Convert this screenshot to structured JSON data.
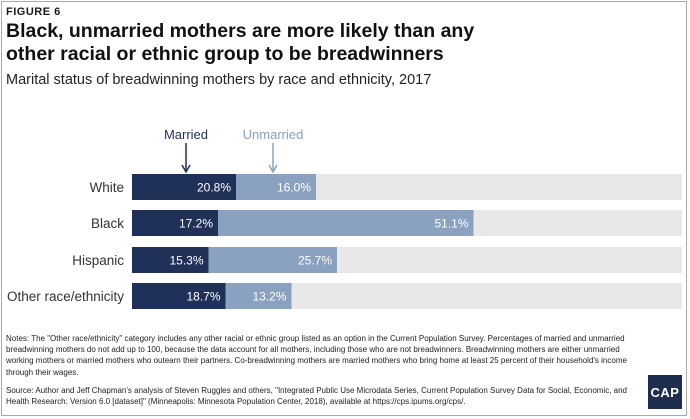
{
  "figure_label": "FIGURE 6",
  "title": "Black, unmarried mothers are more likely than any other racial or ethnic group to be breadwinners",
  "subtitle": "Marital status of breadwinning mothers by race and ethnicity, 2017",
  "colors": {
    "married": "#1f3158",
    "unmarried": "#8aa1c0",
    "track": "#e8e8e8",
    "axis": "#1f3158"
  },
  "chart_data": {
    "type": "bar",
    "orientation": "horizontal",
    "stacked": true,
    "title": "Marital status of breadwinning mothers by race and ethnicity, 2017",
    "categories": [
      "White",
      "Black",
      "Hispanic",
      "Other race/ethnicity"
    ],
    "series": [
      {
        "name": "Married",
        "values": [
          20.8,
          17.2,
          15.3,
          18.7
        ]
      },
      {
        "name": "Unmarried",
        "values": [
          16.0,
          51.1,
          25.7,
          13.2
        ]
      }
    ],
    "value_labels": {
      "Married": [
        "20.8%",
        "17.2%",
        "15.3%",
        "18.7%"
      ],
      "Unmarried": [
        "16.0%",
        "51.1%",
        "25.7%",
        "13.2%"
      ]
    },
    "xlim": [
      0,
      100
    ],
    "unit": "%",
    "legend": "annotation-arrows-top"
  },
  "notes": "Notes: The \"Other race/ethnicity\" category includes any other racial or ethnic group listed as an option in the Current Population Survey. Percentages of married and unmarried breadwinning mothers do not add up to 100, because the data account for all mothers, including those who are not breadwinners. Breadwinning mothers are either unmarried working mothers or married mothers who outearn their partners. Co-breadwinning mothers are married mothers who bring home at least 25 percent of their household's income through their wages.",
  "source": "Source: Author and Jeff Chapman's analysis of Steven Ruggles and others, \"Integrated Public Use Microdata Series, Current Population Survey Data for Social, Economic, and Health Research: Version 6.0 [dataset]\" (Minneapolis: Minnesota Population Center, 2018), available at https://cps.ipums.org/cps/.",
  "logo_text": "CAP"
}
